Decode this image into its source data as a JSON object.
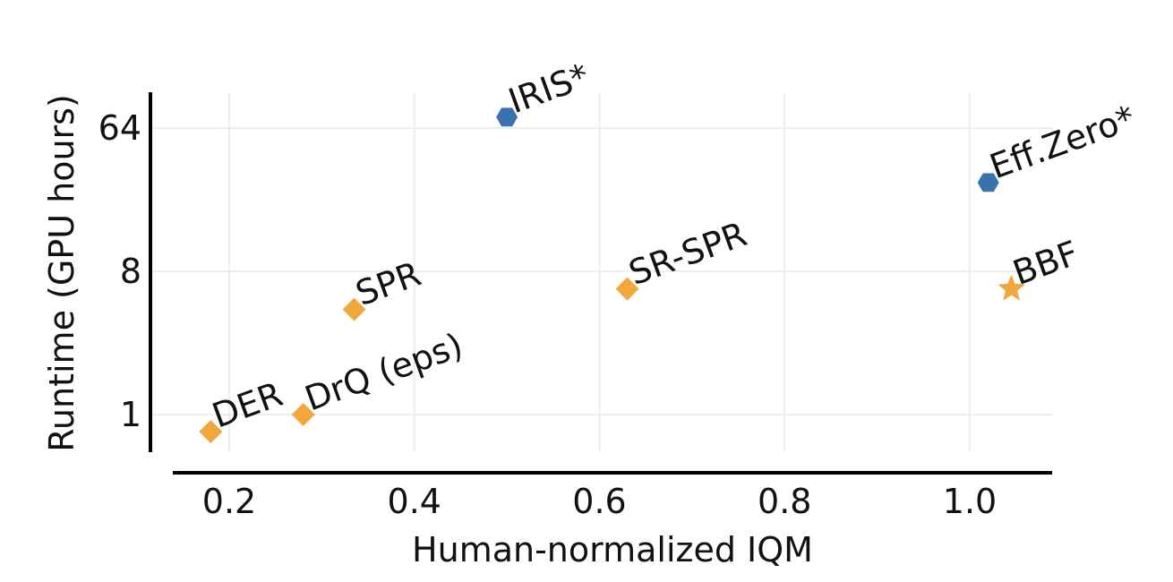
{
  "chart_data": {
    "type": "scatter",
    "xlabel": "Human-normalized IQM",
    "ylabel": "Runtime (GPU hours)",
    "x_scale": "linear",
    "y_scale": "log2",
    "xlim": [
      0.15,
      1.08
    ],
    "ylim": [
      0.6,
      100
    ],
    "x_ticks": [
      0.2,
      0.4,
      0.6,
      0.8,
      1.0
    ],
    "x_tick_labels": [
      "0.2",
      "0.4",
      "0.6",
      "0.8",
      "1.0"
    ],
    "y_ticks": [
      1,
      8,
      64
    ],
    "y_tick_labels": [
      "1",
      "8",
      "64"
    ],
    "grid": true,
    "colors": {
      "orange": "#f0a83c",
      "blue": "#3a72b0"
    },
    "points": [
      {
        "label": "IRIS*",
        "x": 0.5,
        "y": 75,
        "marker": "hexagon",
        "color": "#3a72b0"
      },
      {
        "label": "Eff.Zero*",
        "x": 1.02,
        "y": 29,
        "marker": "hexagon",
        "color": "#3a72b0"
      },
      {
        "label": "SR-SPR",
        "x": 0.63,
        "y": 6.2,
        "marker": "diamond",
        "color": "#f0a83c"
      },
      {
        "label": "BBF",
        "x": 1.045,
        "y": 6.2,
        "marker": "star",
        "color": "#f0a83c"
      },
      {
        "label": "SPR",
        "x": 0.335,
        "y": 4.6,
        "marker": "diamond",
        "color": "#f0a83c"
      },
      {
        "label": "DrQ (eps)",
        "x": 0.28,
        "y": 1.0,
        "marker": "diamond",
        "color": "#f0a83c"
      },
      {
        "label": "DER",
        "x": 0.18,
        "y": 0.78,
        "marker": "diamond",
        "color": "#f0a83c"
      }
    ]
  }
}
